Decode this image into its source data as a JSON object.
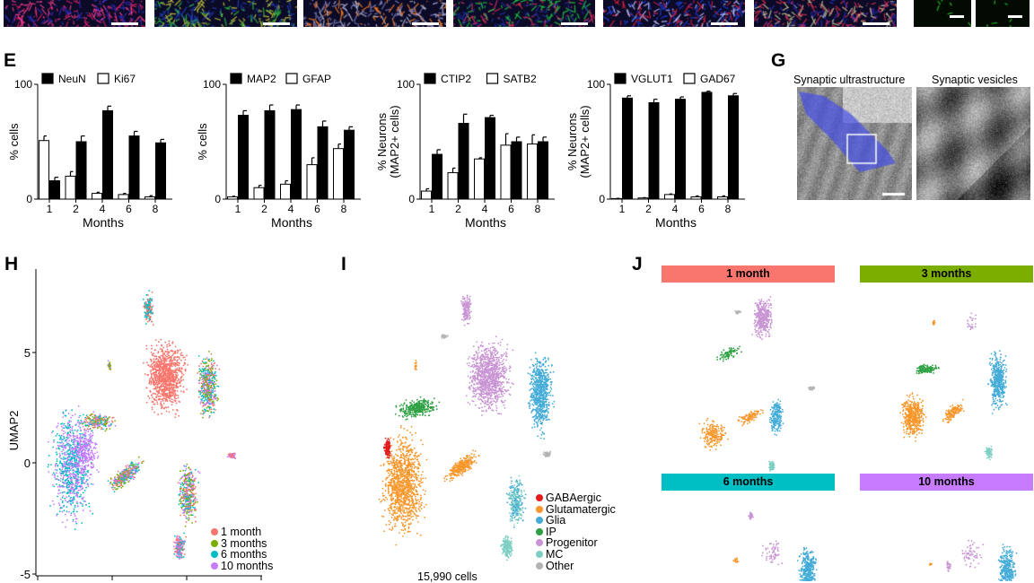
{
  "panels": {
    "E": "E",
    "G": "G",
    "H": "H",
    "I": "I",
    "J": "J"
  },
  "top_strip": {
    "tiles": 8,
    "scale_bars": true
  },
  "chart_data": [
    {
      "type": "bar",
      "categories": [
        "1",
        "2",
        "4",
        "6",
        "8"
      ],
      "xlabel": "Months",
      "ylabel": [
        "% cells"
      ],
      "ylim": [
        0,
        100
      ],
      "yticks": [
        "0",
        "100"
      ],
      "series": [
        {
          "name": "NeuN",
          "color": "#000000",
          "values": [
            16,
            50,
            77,
            55,
            49
          ],
          "errors": [
            3,
            5,
            4,
            4,
            3
          ]
        },
        {
          "name": "Ki67",
          "color": "#ffffff",
          "values": [
            51,
            20,
            5,
            4,
            2
          ],
          "errors": [
            4,
            4,
            1,
            1,
            1
          ]
        }
      ],
      "legend": "top"
    },
    {
      "type": "bar",
      "categories": [
        "1",
        "2",
        "4",
        "6",
        "8"
      ],
      "xlabel": "Months",
      "ylabel": [
        "% cells"
      ],
      "ylim": [
        0,
        100
      ],
      "yticks": [
        "0",
        "100"
      ],
      "series": [
        {
          "name": "MAP2",
          "color": "#000000",
          "values": [
            73,
            77,
            78,
            63,
            60
          ],
          "errors": [
            4,
            5,
            4,
            5,
            3
          ]
        },
        {
          "name": "GFAP",
          "color": "#ffffff",
          "values": [
            2,
            10,
            13,
            30,
            44
          ],
          "errors": [
            0.5,
            2,
            3,
            6,
            4
          ]
        }
      ],
      "legend": "top"
    },
    {
      "type": "bar",
      "categories": [
        "1",
        "2",
        "4",
        "6",
        "8"
      ],
      "xlabel": "Months",
      "ylabel": [
        "% Neurons",
        "(MAP2+ cells)"
      ],
      "ylim": [
        0,
        100
      ],
      "yticks": [
        "0",
        "100"
      ],
      "series": [
        {
          "name": "CTIP2",
          "color": "#000000",
          "values": [
            39,
            66,
            71,
            50,
            50
          ],
          "errors": [
            4,
            8,
            2,
            4,
            4
          ]
        },
        {
          "name": "SATB2",
          "color": "#ffffff",
          "values": [
            7,
            23,
            35,
            47,
            48
          ],
          "errors": [
            2,
            4,
            1,
            10,
            8
          ]
        }
      ],
      "legend": "top"
    },
    {
      "type": "bar",
      "categories": [
        "1",
        "2",
        "4",
        "6",
        "8"
      ],
      "xlabel": "Months",
      "ylabel": [
        "% Neurons",
        "(MAP2+ cells)"
      ],
      "ylim": [
        0,
        100
      ],
      "yticks": [
        "0",
        "100"
      ],
      "series": [
        {
          "name": "VGLUT1",
          "color": "#000000",
          "values": [
            88,
            84,
            87,
            93,
            90
          ],
          "errors": [
            2,
            3,
            2,
            1,
            2
          ]
        },
        {
          "name": "GAD67",
          "color": "#ffffff",
          "values": [
            0.5,
            1,
            4,
            2,
            2
          ],
          "errors": [
            0.2,
            0.3,
            0.5,
            0.8,
            0.8
          ]
        }
      ],
      "legend": "top"
    },
    {
      "type": "scatter",
      "panel": "H",
      "ylabel": "UMAP2",
      "yticks": [
        "5",
        "0",
        "-5"
      ],
      "legend": "bottom-right",
      "series": [
        {
          "name": "1 month",
          "color": "#F8766D"
        },
        {
          "name": "3 months",
          "color": "#7CAE00"
        },
        {
          "name": "6 months",
          "color": "#00BFC4"
        },
        {
          "name": "10 months",
          "color": "#C77CFF"
        }
      ]
    },
    {
      "type": "scatter",
      "panel": "I",
      "annotation": "15,990 cells",
      "legend": "bottom-right",
      "series": [
        {
          "name": "GABAergic",
          "color": "#E41A1C"
        },
        {
          "name": "Glutamatergic",
          "color": "#F7962A"
        },
        {
          "name": "Glia",
          "color": "#45ACD8"
        },
        {
          "name": "IP",
          "color": "#2EA043"
        },
        {
          "name": "Progenitor",
          "color": "#C995D4"
        },
        {
          "name": "MC",
          "color": "#7ECFC3"
        },
        {
          "name": "Other",
          "color": "#B3B3B3"
        }
      ]
    }
  ],
  "G": {
    "left_title": "Synaptic ultrastructure",
    "right_title": "Synaptic vesicles",
    "overlay_color": "#4a55e0"
  },
  "J": {
    "facets": [
      {
        "label": "1 month",
        "color": "#F8766D"
      },
      {
        "label": "3 months",
        "color": "#7CAE00"
      },
      {
        "label": "6 months",
        "color": "#00BFC4"
      },
      {
        "label": "10 months",
        "color": "#C77CFF"
      }
    ]
  }
}
